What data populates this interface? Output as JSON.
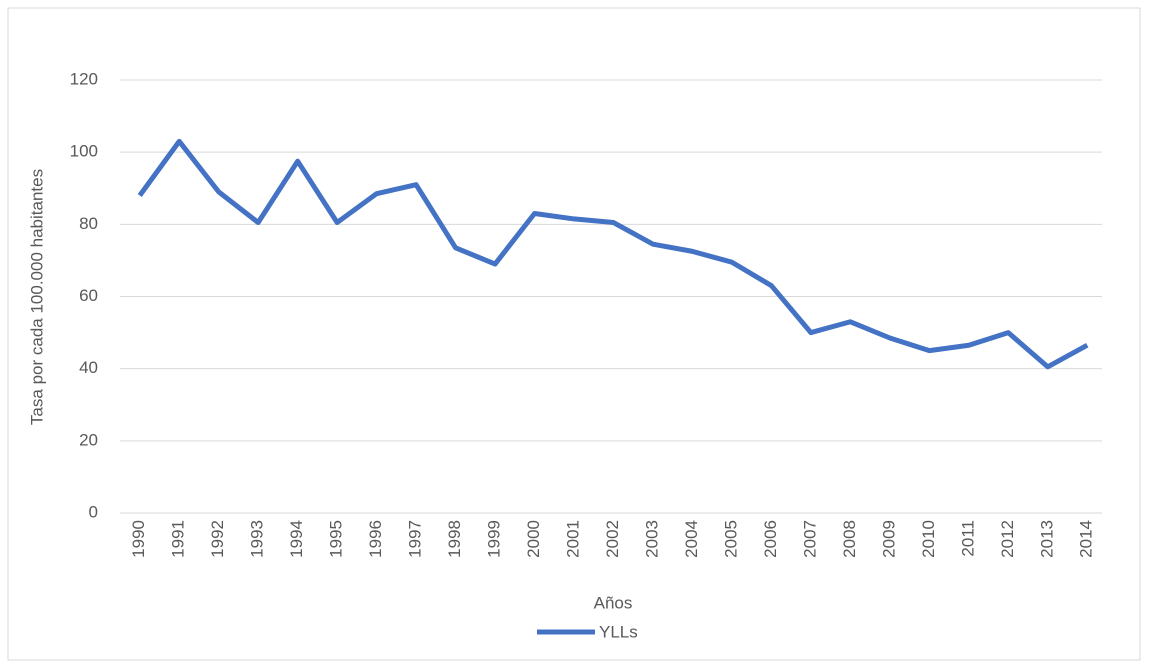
{
  "chart_data": {
    "type": "line",
    "x_label": "Años",
    "y_label": "Tasa por cada  100.000 habitantes",
    "categories": [
      "1990",
      "1991",
      "1992",
      "1993",
      "1994",
      "1995",
      "1996",
      "1997",
      "1998",
      "1999",
      "2000",
      "2001",
      "2002",
      "2003",
      "2004",
      "2005",
      "2006",
      "2007",
      "2008",
      "2009",
      "2010",
      "2011",
      "2012",
      "2013",
      "2014"
    ],
    "series": [
      {
        "name": "YLLs",
        "color": "#4472c4",
        "values": [
          88,
          103,
          89,
          80.5,
          97.5,
          80.5,
          88.5,
          91,
          73.5,
          69,
          83,
          81.5,
          80.5,
          74.5,
          72.5,
          69.5,
          63,
          50,
          53,
          48.5,
          45,
          46.5,
          50,
          40.5,
          46.5
        ]
      }
    ],
    "ylim": [
      0,
      120
    ],
    "yticks": [
      0,
      20,
      40,
      60,
      80,
      100,
      120
    ],
    "grid": true,
    "legend": "bottom"
  }
}
